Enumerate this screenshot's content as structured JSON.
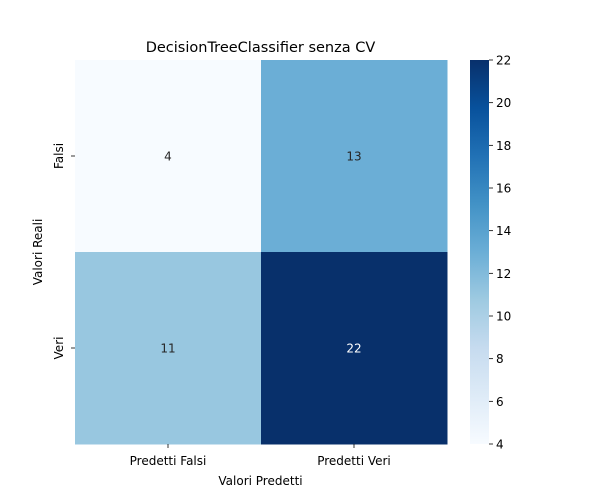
{
  "chart_data": {
    "type": "heatmap",
    "title": "DecisionTreeClassifier senza CV",
    "xlabel": "Valori Predetti",
    "ylabel": "Valori Reali",
    "x_categories": [
      "Predetti Falsi",
      "Predetti Veri"
    ],
    "y_categories": [
      "Falsi",
      "Veri"
    ],
    "values": [
      [
        4,
        13
      ],
      [
        11,
        22
      ]
    ],
    "colormap": "Blues",
    "colorbar": {
      "min": 4,
      "max": 22,
      "ticks": [
        4,
        6,
        8,
        10,
        12,
        14,
        16,
        18,
        20,
        22
      ],
      "colors": [
        "#f7fbff",
        "#deebf7",
        "#c6dbef",
        "#9ecae1",
        "#6baed6",
        "#4292c6",
        "#2171b5",
        "#08519c",
        "#08306b"
      ]
    },
    "annotation_colors": {
      "light_background": "#262626",
      "dark_background": "#ffffff"
    },
    "grid": false,
    "legend": "none"
  }
}
